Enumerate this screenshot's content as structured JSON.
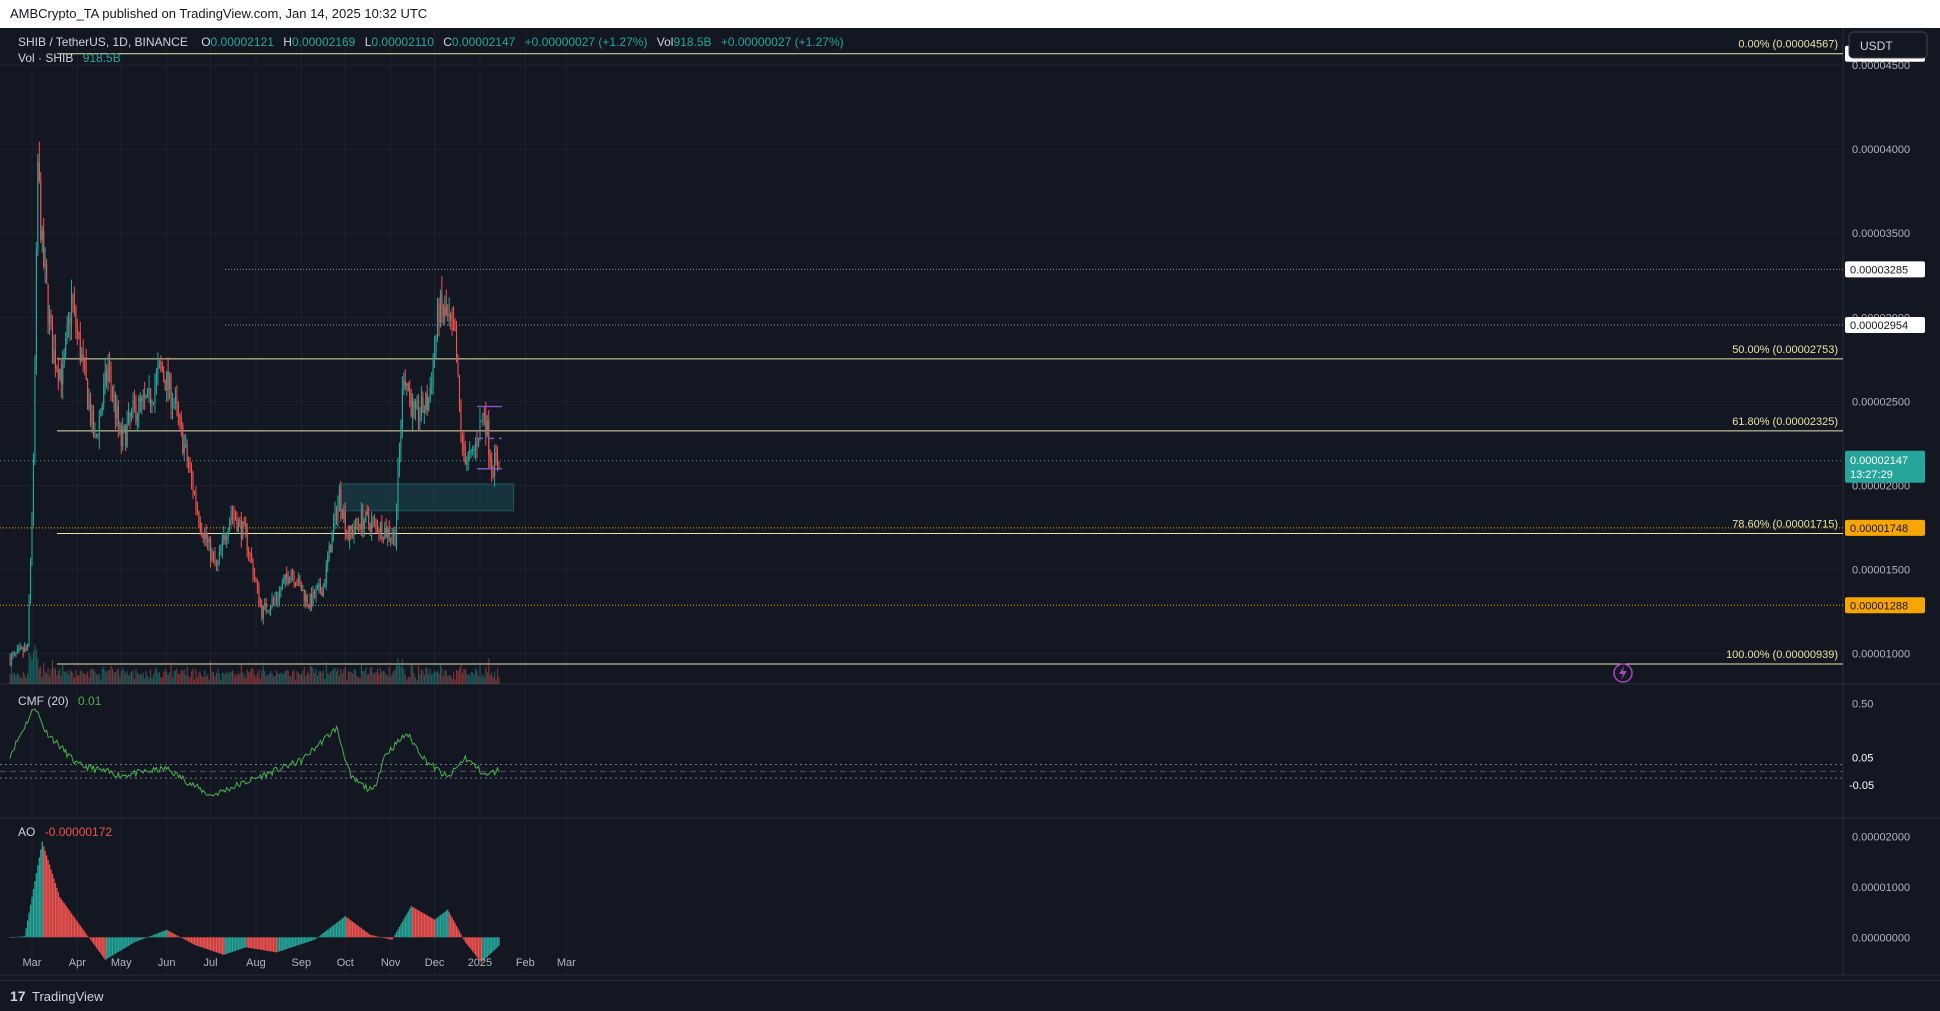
{
  "header": {
    "published": "AMBCrypto_TA published on TradingView.com, Jan 14, 2025 10:32 UTC"
  },
  "legend": {
    "symbol": "SHIB / TetherUS, 1D, BINANCE",
    "o_label": "O",
    "o": "0.00002121",
    "h_label": "H",
    "h": "0.00002169",
    "l_label": "L",
    "l": "0.00002110",
    "c_label": "C",
    "c": "0.00002147",
    "change": "+0.00000027 (+1.27%)",
    "vol_label": "Vol",
    "vol": "918.5B",
    "vol_change": "+0.00000027 (+1.27%)",
    "vol_row_label": "Vol · SHIB",
    "vol_row_value": "918.5B"
  },
  "currency_button": "USDT",
  "colors": {
    "bg": "#131722",
    "up": "#26a69a",
    "down": "#ef5350",
    "fib": "#e8e3a8",
    "purple": "#7e57c2",
    "cmf": "#4caf50",
    "zone": "#1a4a55"
  },
  "chart_data": [
    {
      "type": "candlestick",
      "title": "SHIB / TetherUS, 1D, BINANCE",
      "y_scale": "linear",
      "ylim": [
        8.2e-06,
        4.72e-05
      ],
      "x_ticks": [
        "Mar",
        "Apr",
        "May",
        "Jun",
        "Jul",
        "Aug",
        "Sep",
        "Oct",
        "Nov",
        "Dec",
        "2025",
        "Feb",
        "Mar"
      ],
      "y_ticks": [
        "0.00001000",
        "0.00001500",
        "0.00002000",
        "0.00002500",
        "0.00003000",
        "0.00003500",
        "0.00004000",
        "0.00004500"
      ],
      "price_labels": [
        "0.00004567",
        "0.00003285",
        "0.00002954",
        "0.00001748",
        "0.00001288"
      ],
      "last_price": "0.00002147",
      "countdown": "13:27:29",
      "fib_levels": [
        {
          "label": "0.00% (0.00004567)",
          "value": 4.567e-05
        },
        {
          "label": "50.00% (0.00002753)",
          "value": 2.753e-05
        },
        {
          "label": "61.80% (0.00002325)",
          "value": 2.325e-05
        },
        {
          "label": "78.60% (0.00001715)",
          "value": 1.715e-05
        },
        {
          "label": "100.00% (0.00000939)",
          "value": 9.39e-06
        }
      ],
      "horizontal_levels": [
        3.285e-05,
        2.954e-05,
        1.748e-05,
        1.288e-05
      ],
      "anchors": [
        {
          "date": "2024-02-15",
          "price": 9.7e-06
        },
        {
          "date": "2024-02-27",
          "price": 1.03e-05
        },
        {
          "date": "2024-03-02",
          "price": 2.1e-05
        },
        {
          "date": "2024-03-05",
          "price": 3.9e-05
        },
        {
          "date": "2024-03-08",
          "price": 3.4e-05
        },
        {
          "date": "2024-03-15",
          "price": 2.8e-05
        },
        {
          "date": "2024-03-22",
          "price": 2.65e-05
        },
        {
          "date": "2024-03-28",
          "price": 3.1e-05
        },
        {
          "date": "2024-04-05",
          "price": 2.7e-05
        },
        {
          "date": "2024-04-13",
          "price": 2.25e-05
        },
        {
          "date": "2024-04-22",
          "price": 2.7e-05
        },
        {
          "date": "2024-05-01",
          "price": 2.25e-05
        },
        {
          "date": "2024-05-10",
          "price": 2.45e-05
        },
        {
          "date": "2024-05-20",
          "price": 2.5e-05
        },
        {
          "date": "2024-05-28",
          "price": 2.7e-05
        },
        {
          "date": "2024-06-06",
          "price": 2.5e-05
        },
        {
          "date": "2024-06-15",
          "price": 2.15e-05
        },
        {
          "date": "2024-06-24",
          "price": 1.78e-05
        },
        {
          "date": "2024-07-05",
          "price": 1.5e-05
        },
        {
          "date": "2024-07-15",
          "price": 1.85e-05
        },
        {
          "date": "2024-07-25",
          "price": 1.7e-05
        },
        {
          "date": "2024-08-05",
          "price": 1.25e-05
        },
        {
          "date": "2024-08-15",
          "price": 1.33e-05
        },
        {
          "date": "2024-08-25",
          "price": 1.5e-05
        },
        {
          "date": "2024-09-06",
          "price": 1.3e-05
        },
        {
          "date": "2024-09-16",
          "price": 1.4e-05
        },
        {
          "date": "2024-09-27",
          "price": 1.95e-05
        },
        {
          "date": "2024-10-03",
          "price": 1.7e-05
        },
        {
          "date": "2024-10-12",
          "price": 1.8e-05
        },
        {
          "date": "2024-10-25",
          "price": 1.75e-05
        },
        {
          "date": "2024-11-04",
          "price": 1.7e-05
        },
        {
          "date": "2024-11-10",
          "price": 2.7e-05
        },
        {
          "date": "2024-11-17",
          "price": 2.4e-05
        },
        {
          "date": "2024-11-27",
          "price": 2.5e-05
        },
        {
          "date": "2024-12-04",
          "price": 3.05e-05
        },
        {
          "date": "2024-12-09",
          "price": 3e-05
        },
        {
          "date": "2024-12-15",
          "price": 2.85e-05
        },
        {
          "date": "2024-12-20",
          "price": 2.2e-05
        },
        {
          "date": "2024-12-26",
          "price": 2.15e-05
        },
        {
          "date": "2025-01-04",
          "price": 2.45e-05
        },
        {
          "date": "2025-01-09",
          "price": 2.12e-05
        },
        {
          "date": "2025-01-14",
          "price": 2.15e-05
        }
      ],
      "support_zone": {
        "from": "2024-09-27",
        "to": "2025-01-24",
        "low": 1.85e-05,
        "high": 2.01e-05
      },
      "range_lines": {
        "from": "2024-12-30",
        "to": "2025-01-16",
        "top": 2.47e-05,
        "mid": 2.28e-05,
        "bottom": 2.1e-05
      }
    },
    {
      "type": "line",
      "title": "CMF (20)",
      "value_label": "0.01",
      "y_ticks": [
        "0.50"
      ],
      "levels": [
        "0.05",
        "-0.05"
      ],
      "ylim": [
        -0.3,
        0.6
      ],
      "anchors": [
        {
          "date": "2024-02-15",
          "value": 0.12
        },
        {
          "date": "2024-03-03",
          "value": 0.48
        },
        {
          "date": "2024-03-10",
          "value": 0.3
        },
        {
          "date": "2024-04-01",
          "value": 0.05
        },
        {
          "date": "2024-05-01",
          "value": -0.03
        },
        {
          "date": "2024-06-01",
          "value": 0.02
        },
        {
          "date": "2024-07-01",
          "value": -0.18
        },
        {
          "date": "2024-08-01",
          "value": -0.05
        },
        {
          "date": "2024-09-01",
          "value": 0.08
        },
        {
          "date": "2024-09-25",
          "value": 0.32
        },
        {
          "date": "2024-10-05",
          "value": -0.05
        },
        {
          "date": "2024-10-20",
          "value": -0.15
        },
        {
          "date": "2024-10-28",
          "value": 0.12
        },
        {
          "date": "2024-11-12",
          "value": 0.28
        },
        {
          "date": "2024-11-25",
          "value": 0.08
        },
        {
          "date": "2024-12-10",
          "value": -0.05
        },
        {
          "date": "2024-12-22",
          "value": 0.1
        },
        {
          "date": "2025-01-05",
          "value": -0.03
        },
        {
          "date": "2025-01-14",
          "value": 0.01
        }
      ]
    },
    {
      "type": "histogram",
      "title": "AO",
      "value_label": "-0.00000172",
      "y_ticks": [
        "0.00002000",
        "0.00001000",
        "0.00000000"
      ],
      "ylim": [
        -6.5e-06,
        2.25e-05
      ],
      "anchors": [
        {
          "date": "2024-02-15",
          "value": 0.0
        },
        {
          "date": "2024-02-25",
          "value": 2e-07
        },
        {
          "date": "2024-03-08",
          "value": 1.9e-05
        },
        {
          "date": "2024-03-20",
          "value": 8e-06
        },
        {
          "date": "2024-04-05",
          "value": 1.5e-06
        },
        {
          "date": "2024-04-20",
          "value": -4.5e-06
        },
        {
          "date": "2024-05-10",
          "value": -1e-06
        },
        {
          "date": "2024-06-01",
          "value": 1.5e-06
        },
        {
          "date": "2024-06-20",
          "value": -1.5e-06
        },
        {
          "date": "2024-07-10",
          "value": -3.5e-06
        },
        {
          "date": "2024-07-25",
          "value": -2e-06
        },
        {
          "date": "2024-08-15",
          "value": -3e-06
        },
        {
          "date": "2024-09-10",
          "value": -5e-07
        },
        {
          "date": "2024-10-01",
          "value": 4.2e-06
        },
        {
          "date": "2024-10-18",
          "value": 5e-07
        },
        {
          "date": "2024-11-02",
          "value": -5e-07
        },
        {
          "date": "2024-11-15",
          "value": 6.2e-06
        },
        {
          "date": "2024-12-01",
          "value": 3.5e-06
        },
        {
          "date": "2024-12-10",
          "value": 5.5e-06
        },
        {
          "date": "2024-12-22",
          "value": -1e-06
        },
        {
          "date": "2025-01-02",
          "value": -5e-06
        },
        {
          "date": "2025-01-14",
          "value": -1.7e-06
        }
      ]
    }
  ],
  "footer": {
    "brand": "TradingView"
  }
}
